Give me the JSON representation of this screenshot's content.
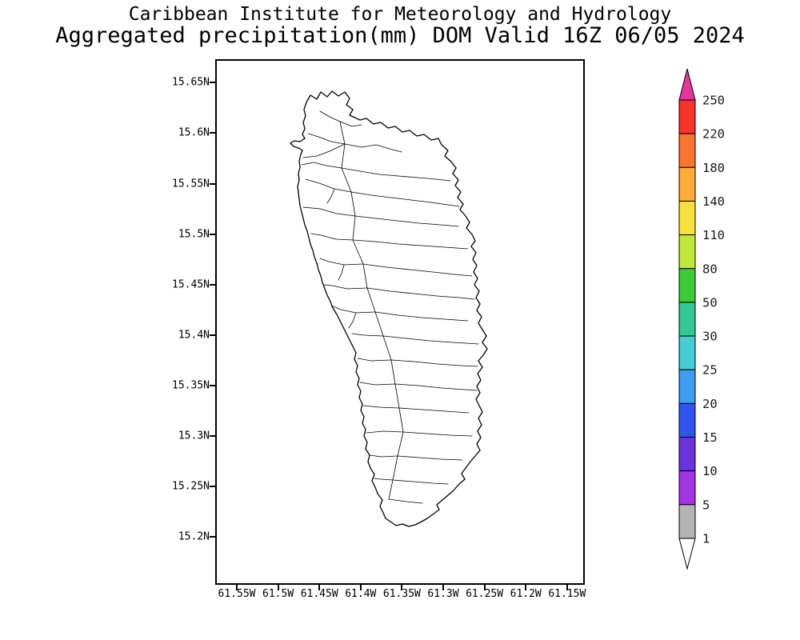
{
  "header": {
    "line1": "Caribbean Institute for Meteorology and Hydrology",
    "line2": "Aggregated precipitation(mm) DOM Valid 16Z 06/05 2024"
  },
  "map": {
    "region": "Dominica (DOM)",
    "lat_labels": [
      "15.65N",
      "15.6N",
      "15.55N",
      "15.5N",
      "15.45N",
      "15.4N",
      "15.35N",
      "15.3N",
      "15.25N",
      "15.2N"
    ],
    "lon_labels": [
      "61.55W",
      "61.5W",
      "61.45W",
      "61.4W",
      "61.35W",
      "61.3W",
      "61.25W",
      "61.2W",
      "61.15W"
    ]
  },
  "colorbar": {
    "unit": "mm",
    "levels": [
      "250",
      "220",
      "180",
      "140",
      "110",
      "80",
      "50",
      "30",
      "25",
      "20",
      "15",
      "10",
      "5",
      "1"
    ],
    "colors": [
      "#e8359e",
      "#f5342d",
      "#fa7432",
      "#fcaa3a",
      "#f6e23a",
      "#c0e83c",
      "#3ecb3a",
      "#35c795",
      "#46ccd2",
      "#3f9df2",
      "#3055ef",
      "#6a33dd",
      "#a235e0",
      "#b4b4b4",
      "#ffffff"
    ],
    "text_color": "#1a1a1a"
  }
}
